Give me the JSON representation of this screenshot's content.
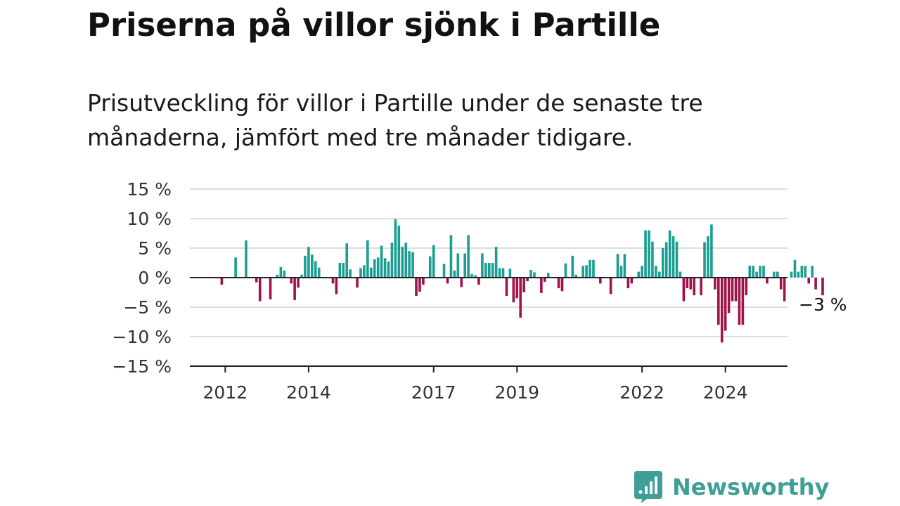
{
  "title": "Priserna på villor sjönk i Partille",
  "subtitle": "Prisutveckling för villor i Partille under de senaste tre månaderna, jämfört med tre månader tidigare.",
  "brand": {
    "name": "Newsworthy",
    "icon": "newsworthy-bar-chart-icon"
  },
  "colors": {
    "positive": "#1a9e93",
    "negative": "#a0134a",
    "grid": "#dddddd",
    "axis": "#222222",
    "brand": "#3f9e97"
  },
  "chart_data": {
    "type": "bar",
    "title": "Priserna på villor sjönk i Partille",
    "subtitle": "Prisutveckling för villor i Partille under de senaste tre månaderna, jämfört med tre månader tidigare.",
    "xlabel": "",
    "ylabel": "",
    "ylim": [
      -15,
      15
    ],
    "y_ticks": [
      15,
      10,
      5,
      0,
      -5,
      -10,
      -15
    ],
    "y_tick_labels": [
      "15 %",
      "10 %",
      "5 %",
      "0 %",
      "−5 %",
      "−10 %",
      "−15 %"
    ],
    "x_ticks": [
      {
        "year": 2012,
        "label": "2012"
      },
      {
        "year": 2014,
        "label": "2014"
      },
      {
        "year": 2017,
        "label": "2017"
      },
      {
        "year": 2019,
        "label": "2019"
      },
      {
        "year": 2022,
        "label": "2022"
      },
      {
        "year": 2024,
        "label": "2024"
      }
    ],
    "x_start": "2011-10",
    "grid": true,
    "end_label": "−3 %",
    "unit": "%",
    "series": [
      {
        "values": [
          0,
          0,
          -1.2,
          0,
          0,
          0,
          3.4,
          0,
          0,
          6.3,
          0,
          0,
          -0.8,
          -4,
          0,
          0,
          -3.7,
          0,
          0.5,
          1.8,
          1.2,
          0,
          -1,
          -3.8,
          -1.7,
          0.5,
          3.7,
          5.2,
          3.9,
          2.8,
          1.7,
          0,
          0,
          0,
          -1,
          -2.8,
          2.5,
          2.5,
          5.8,
          1.4,
          0,
          -1.7,
          1.6,
          2.1,
          6.3,
          1.7,
          3.1,
          3.4,
          5.4,
          3.3,
          2.7,
          5.9,
          9.9,
          8.8,
          5.2,
          5.9,
          4.5,
          4.3,
          -3.1,
          -2.4,
          -1.2,
          0,
          3.6,
          5.5,
          0,
          0,
          2.3,
          -1,
          7.2,
          1.2,
          4.1,
          -1.6,
          4.1,
          7.2,
          0.6,
          0.4,
          -1.2,
          4.1,
          2.5,
          2.5,
          2.5,
          5.2,
          1.6,
          1.6,
          -3.1,
          1.5,
          -4.2,
          -3.5,
          -6.8,
          -2.5,
          -0.6,
          1.3,
          0.9,
          0,
          -2.6,
          -0.7,
          0.8,
          0,
          0,
          -1.8,
          -2.3,
          2.4,
          0,
          3.7,
          0.5,
          0,
          2,
          2.1,
          3,
          3,
          0,
          -1,
          0,
          0,
          -2.8,
          0,
          4,
          2,
          4,
          -1.8,
          -1,
          0,
          1,
          2,
          8,
          8,
          6.1,
          2,
          1,
          5,
          6,
          8,
          7,
          6.1,
          1,
          -4,
          -1.8,
          -2,
          -3,
          0,
          -3,
          6,
          7,
          9,
          -2,
          -8,
          -11,
          -9,
          -6,
          -4,
          -4,
          -8,
          -8,
          -3,
          2,
          2,
          1,
          2,
          2,
          -1,
          0,
          1,
          1,
          -2,
          -4,
          0,
          1,
          3,
          1,
          2,
          2,
          -1,
          2,
          -2,
          0,
          -3
        ]
      }
    ]
  }
}
